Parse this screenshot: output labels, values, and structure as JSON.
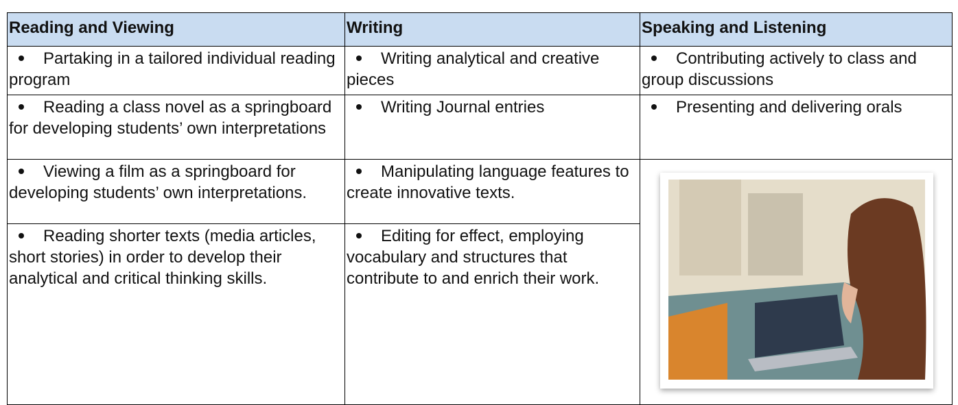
{
  "table": {
    "headers": [
      "Reading and Viewing",
      "Writing",
      "Speaking and Listening"
    ],
    "rows": [
      [
        "Partaking in a tailored individual reading program",
        "Writing analytical and creative pieces",
        "Contributing actively to class and group discussions"
      ],
      [
        "Reading a class novel as a springboard for developing students’ own interpretations",
        "Writing Journal entries",
        "Presenting and delivering orals"
      ],
      [
        "Viewing a film as a springboard for developing students’ own interpretations.",
        "Manipulating language features to create innovative texts."
      ],
      [
        "Reading shorter texts (media articles, short stories) in order to develop their analytical and critical thinking skills.",
        "Editing for effect, employing vocabulary and structures that contribute to and enrich their work."
      ]
    ]
  }
}
